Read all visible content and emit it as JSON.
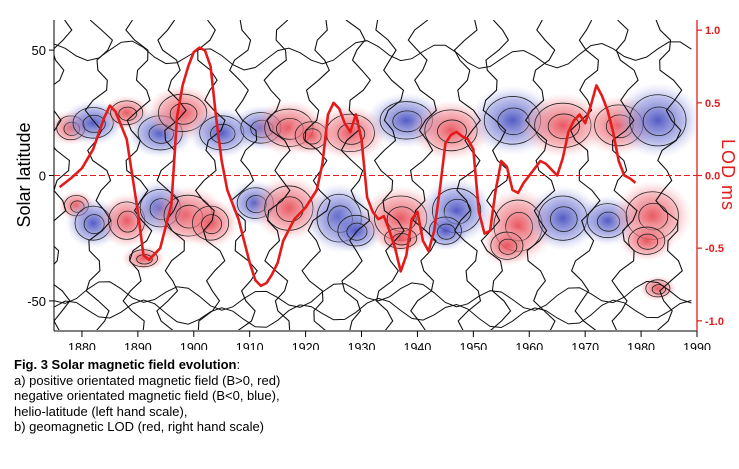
{
  "chart_data": {
    "type": "line",
    "ylabel": "Solar latitude",
    "ylabel_right": "LOD ms",
    "x_ticks": [
      1880,
      1890,
      1900,
      1910,
      1920,
      1930,
      1940,
      1950,
      1960,
      1970,
      1980,
      1990
    ],
    "y_ticks_left": [
      50,
      0,
      -50
    ],
    "y_ticks_right": [
      "1.0",
      "0.5",
      "0.0",
      "-0.5",
      "-1.0"
    ],
    "xlim": [
      1875,
      1990
    ],
    "ylim_left": [
      -62,
      62
    ],
    "ylim_right": [
      -1.07,
      1.07
    ],
    "series": [
      {
        "color": "#e31b1b",
        "x": [
          1876,
          1878,
          1880,
          1882,
          1884,
          1885,
          1886,
          1888,
          1890,
          1891,
          1892,
          1894,
          1896,
          1897,
          1898,
          1899,
          1900,
          1901,
          1902,
          1903,
          1904,
          1905,
          1906,
          1907,
          1908,
          1909,
          1910,
          1911,
          1912,
          1913,
          1914,
          1915,
          1916,
          1918,
          1920,
          1922,
          1923,
          1924,
          1925,
          1926,
          1927,
          1928,
          1929,
          1930,
          1931,
          1932,
          1933,
          1934,
          1935,
          1936,
          1937,
          1938,
          1939,
          1940,
          1941,
          1942,
          1943,
          1944,
          1945,
          1946,
          1947,
          1948,
          1949,
          1950,
          1951,
          1952,
          1953,
          1954,
          1955,
          1956,
          1957,
          1958,
          1959,
          1960,
          1961,
          1962,
          1963,
          1964,
          1965,
          1966,
          1967,
          1968,
          1969,
          1970,
          1971,
          1972,
          1973,
          1974,
          1975,
          1976,
          1977,
          1978,
          1979
        ],
        "values": [
          -0.08,
          -0.02,
          0.05,
          0.18,
          0.4,
          0.48,
          0.44,
          0.25,
          -0.25,
          -0.55,
          -0.58,
          -0.5,
          -0.2,
          0.4,
          0.62,
          0.75,
          0.85,
          0.88,
          0.86,
          0.75,
          0.4,
          0.1,
          -0.1,
          -0.2,
          -0.3,
          -0.45,
          -0.6,
          -0.72,
          -0.76,
          -0.74,
          -0.68,
          -0.6,
          -0.45,
          -0.3,
          -0.22,
          -0.1,
          0.08,
          0.42,
          0.5,
          0.46,
          0.36,
          0.3,
          0.42,
          0.25,
          -0.15,
          -0.25,
          -0.3,
          -0.28,
          -0.38,
          -0.5,
          -0.66,
          -0.55,
          -0.3,
          -0.25,
          -0.45,
          -0.52,
          -0.38,
          -0.1,
          0.22,
          0.28,
          0.3,
          0.27,
          0.25,
          0.18,
          -0.25,
          -0.4,
          -0.38,
          -0.1,
          0.1,
          0.06,
          -0.1,
          -0.12,
          -0.05,
          0.0,
          0.05,
          0.1,
          0.08,
          0.04,
          0.0,
          0.12,
          0.3,
          0.38,
          0.42,
          0.36,
          0.48,
          0.62,
          0.55,
          0.45,
          0.3,
          0.1,
          0.0,
          -0.02,
          -0.05
        ]
      }
    ]
  },
  "caption": {
    "title": "Fig. 3  Solar magnetic field  evolution",
    "title_suffix": ":",
    "lines": [
      "a)  positive orientated magnetic field (B>0, red)",
      "negative  orientated magnetic field (B<0, blue),",
      "helio-latitude (left hand scale),",
      "b) geomagnetic LOD (red, right hand scale)"
    ]
  },
  "colors": {
    "lod": "#e31b1b",
    "positive_field": "#e0606a",
    "negative_field": "#5560c8",
    "contour": "#111111"
  }
}
